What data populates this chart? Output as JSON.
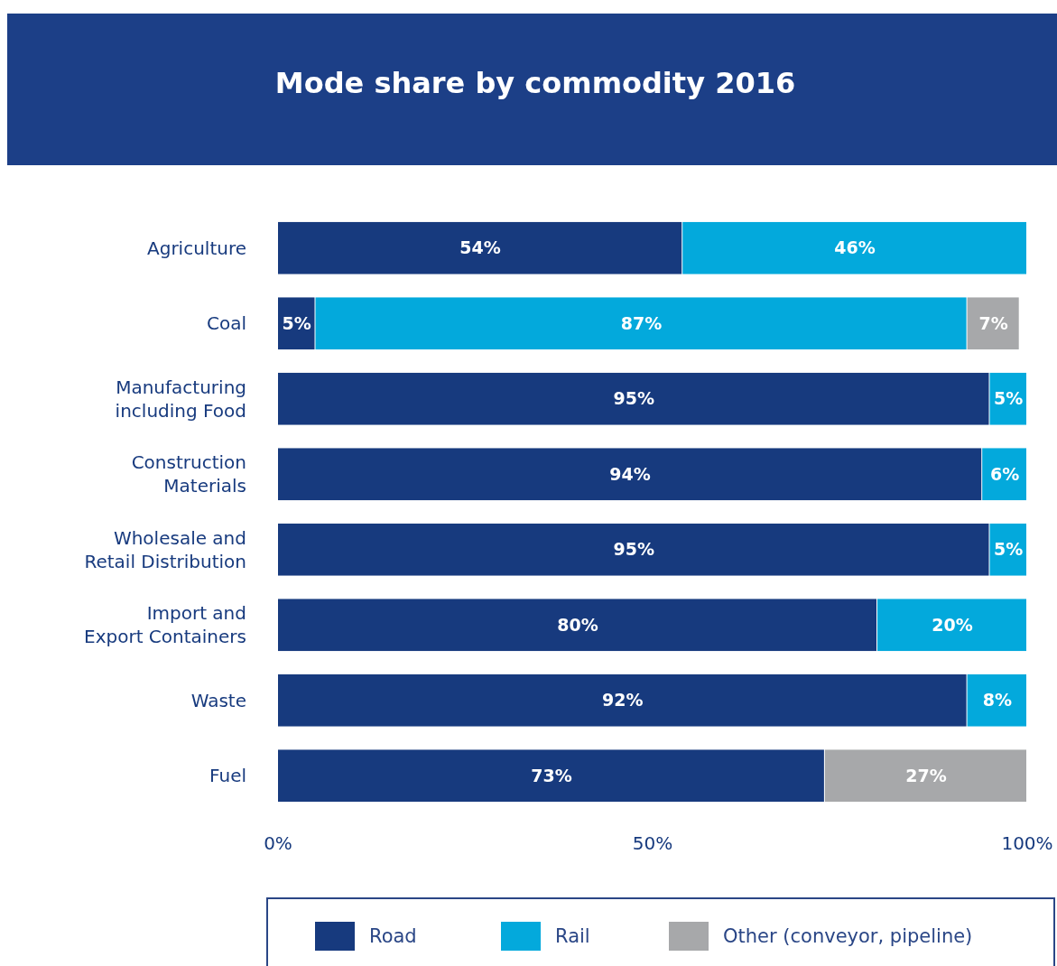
{
  "chart_data": {
    "type": "bar",
    "orientation": "horizontal",
    "stacked": true,
    "title": "Mode share by commodity 2016",
    "categories": [
      "Agriculture",
      "Coal",
      "Manufacturing including Food",
      "Construction Materials",
      "Wholesale and Retail Distribution",
      "Import and Export Containers",
      "Waste",
      "Fuel"
    ],
    "series": [
      {
        "name": "Road",
        "color": "#173a7e",
        "values": [
          54,
          5,
          95,
          94,
          95,
          80,
          92,
          73
        ],
        "value_labels": [
          "54%",
          "5%",
          "95%",
          "94%",
          "95%",
          "80%",
          "92%",
          "73%"
        ]
      },
      {
        "name": "Rail",
        "color": "#03a9dc",
        "values": [
          46,
          87,
          5,
          6,
          5,
          20,
          8,
          null
        ],
        "value_labels": [
          "46%",
          "87%",
          "5%",
          "6%",
          "5%",
          "20%",
          "8%",
          null
        ]
      },
      {
        "name": "Other (conveyor, pipeline)",
        "color": "#a7a8aa",
        "values": [
          null,
          7,
          null,
          null,
          null,
          null,
          null,
          27
        ],
        "value_labels": [
          null,
          "7%",
          null,
          null,
          null,
          null,
          null,
          "27%"
        ]
      }
    ],
    "xlim": [
      0,
      100
    ],
    "xticks": [
      {
        "value": 0,
        "label": "0%"
      },
      {
        "value": 50,
        "label": "50%"
      },
      {
        "value": 100,
        "label": "100%"
      }
    ],
    "grid": false,
    "legend": "bottom"
  }
}
